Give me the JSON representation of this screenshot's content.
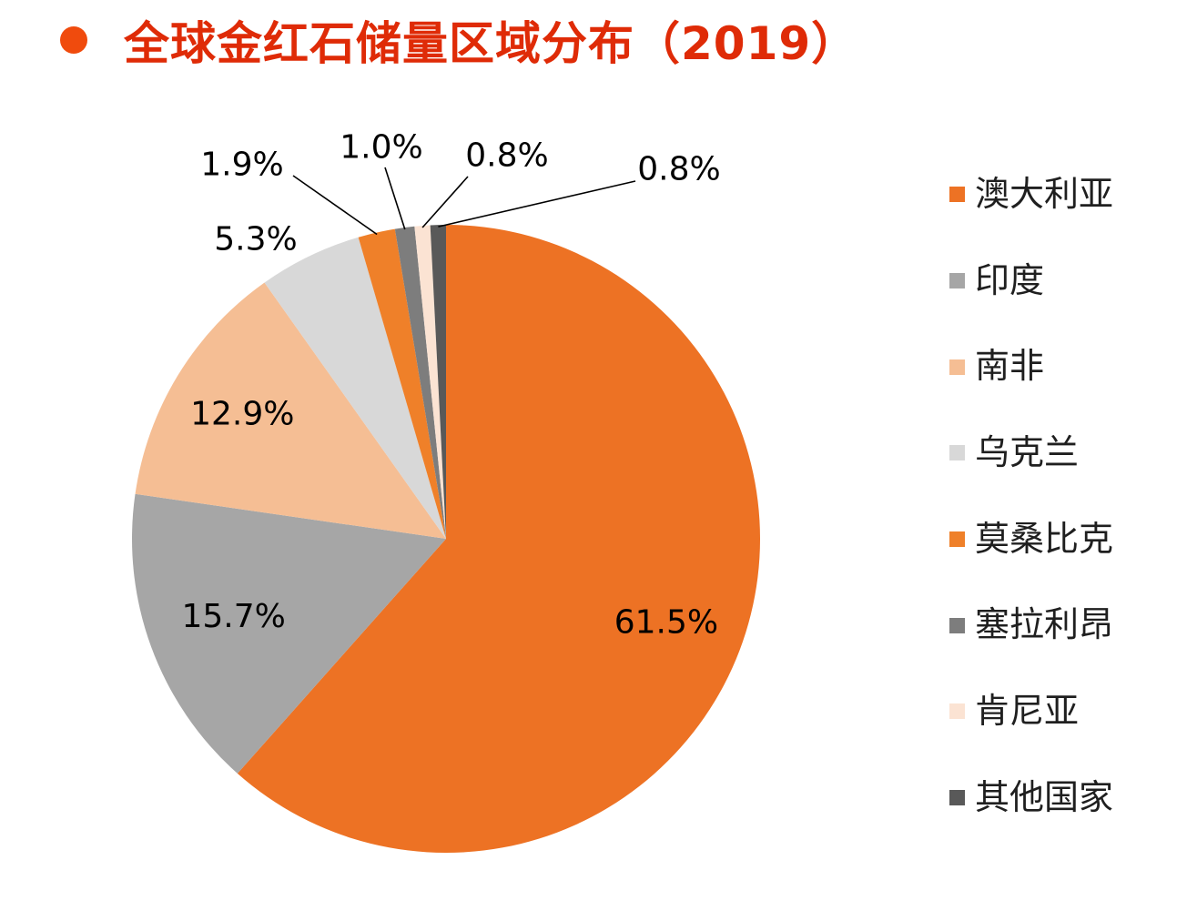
{
  "title": "全球金红石储量区域分布（2019）",
  "title_color": "#df2b07",
  "bullet_color": "#f04b0d",
  "chart_data": {
    "type": "pie",
    "title": "全球金红石储量区域分布（2019）",
    "categories": [
      "澳大利亚",
      "印度",
      "南非",
      "乌克兰",
      "莫桑比克",
      "塞拉利昂",
      "肯尼亚",
      "其他国家"
    ],
    "values": [
      61.5,
      15.7,
      12.9,
      5.3,
      1.9,
      1.0,
      0.8,
      0.8
    ],
    "labels": [
      "61.5%",
      "15.7%",
      "12.9%",
      "5.3%",
      "1.9%",
      "1.0%",
      "0.8%",
      "0.8%"
    ],
    "colors": [
      "#ed7224",
      "#a6a6a6",
      "#f5be94",
      "#d8d8d8",
      "#ef8029",
      "#7d7d7d",
      "#fbe3d3",
      "#595959"
    ],
    "start_angle": -90,
    "direction": "clockwise",
    "legend_position": "right",
    "label_color": "#000000"
  },
  "legend": {
    "items": [
      {
        "label": "澳大利亚",
        "color": "#ed7224"
      },
      {
        "label": "印度",
        "color": "#a6a6a6"
      },
      {
        "label": "南非",
        "color": "#f5be94"
      },
      {
        "label": "乌克兰",
        "color": "#d8d8d8"
      },
      {
        "label": "莫桑比克",
        "color": "#ef8029"
      },
      {
        "label": "塞拉利昂",
        "color": "#7d7d7d"
      },
      {
        "label": "肯尼亚",
        "color": "#fbe3d3"
      },
      {
        "label": "其他国家",
        "color": "#595959"
      }
    ]
  }
}
